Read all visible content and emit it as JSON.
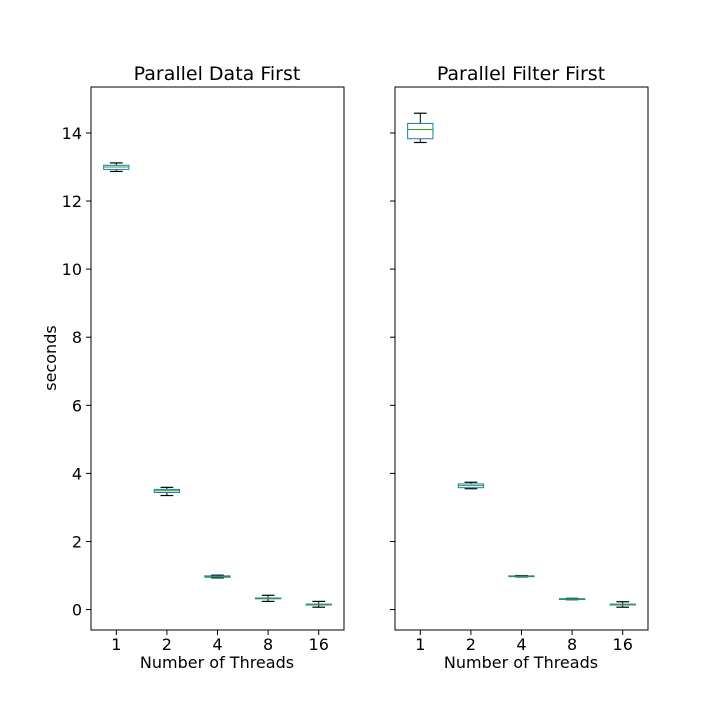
{
  "chart_data": [
    {
      "type": "box",
      "title": "Parallel Data First",
      "xlabel": "Number of Threads",
      "ylabel": "seconds",
      "categories": [
        "1",
        "2",
        "4",
        "8",
        "16"
      ],
      "ylim": [
        -0.6,
        15.35
      ],
      "yticks": [
        0,
        2,
        4,
        6,
        8,
        10,
        12,
        14
      ],
      "ytick_labels": [
        "0",
        "2",
        "4",
        "6",
        "8",
        "10",
        "12",
        "14"
      ],
      "boxes": [
        {
          "whislo": 12.87,
          "q1": 12.93,
          "med": 13.0,
          "q3": 13.05,
          "whishi": 13.12
        },
        {
          "whislo": 3.35,
          "q1": 3.44,
          "med": 3.49,
          "q3": 3.53,
          "whishi": 3.59
        },
        {
          "whislo": 0.93,
          "q1": 0.95,
          "med": 0.97,
          "q3": 0.99,
          "whishi": 1.01
        },
        {
          "whislo": 0.24,
          "q1": 0.32,
          "med": 0.33,
          "q3": 0.34,
          "whishi": 0.42
        },
        {
          "whislo": 0.07,
          "q1": 0.14,
          "med": 0.15,
          "q3": 0.16,
          "whishi": 0.24
        }
      ]
    },
    {
      "type": "box",
      "title": "Parallel Filter First",
      "xlabel": "Number of Threads",
      "ylabel": "",
      "categories": [
        "1",
        "2",
        "4",
        "8",
        "16"
      ],
      "ylim": [
        -0.6,
        15.35
      ],
      "yticks": [
        0,
        2,
        4,
        6,
        8,
        10,
        12,
        14
      ],
      "ytick_labels": [],
      "boxes": [
        {
          "whislo": 13.72,
          "q1": 13.83,
          "med": 14.1,
          "q3": 14.28,
          "whishi": 14.58
        },
        {
          "whislo": 3.55,
          "q1": 3.58,
          "med": 3.64,
          "q3": 3.69,
          "whishi": 3.74
        },
        {
          "whislo": 0.96,
          "q1": 0.97,
          "med": 0.98,
          "q3": 0.99,
          "whishi": 1.0
        },
        {
          "whislo": 0.29,
          "q1": 0.3,
          "med": 0.31,
          "q3": 0.32,
          "whishi": 0.33
        },
        {
          "whislo": 0.07,
          "q1": 0.14,
          "med": 0.15,
          "q3": 0.16,
          "whishi": 0.23
        }
      ]
    }
  ],
  "colors": {
    "box": "#1f77b4",
    "median": "#2ca02c",
    "whisker": "#000000",
    "frame": "#000000",
    "thin_median": "#d62728"
  }
}
